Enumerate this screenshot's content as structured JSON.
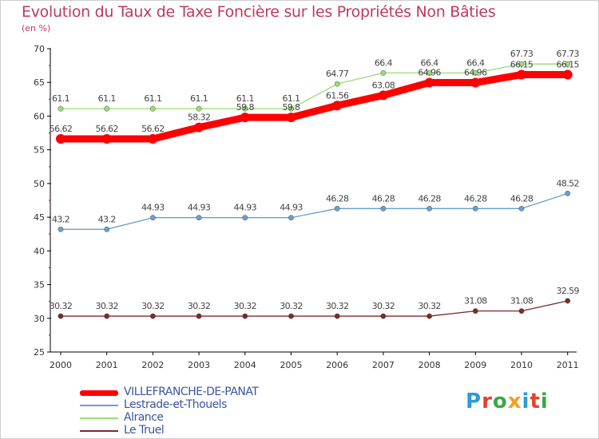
{
  "chart_data": {
    "type": "line",
    "title": "Evolution du Taux de Taxe Foncière sur les Propriétés Non Bâties",
    "ylabel": "(en %)",
    "xlabel": "",
    "x": [
      "2000",
      "2001",
      "2002",
      "2003",
      "2004",
      "2005",
      "2006",
      "2007",
      "2008",
      "2009",
      "2010",
      "2011"
    ],
    "ylim": [
      25,
      70
    ],
    "yticks": [
      25,
      30,
      35,
      40,
      45,
      50,
      55,
      60,
      65,
      70
    ],
    "grid": false,
    "series": [
      {
        "name": "VILLEFRANCHE-DE-PANAT",
        "color": "#ff0000",
        "values": [
          56.62,
          56.62,
          56.62,
          58.32,
          59.8,
          59.8,
          61.56,
          63.08,
          64.96,
          64.96,
          66.15,
          66.15
        ],
        "labels": [
          "56.62",
          "56.62",
          "56.62",
          "58.32",
          "59.8",
          "59.8",
          "61.56",
          "63.08",
          "64.96",
          "64.96",
          "66.15",
          "66.15"
        ]
      },
      {
        "name": "Lestrade-et-Thouels",
        "color": "#6a9fd0",
        "values": [
          43.2,
          43.2,
          44.93,
          44.93,
          44.93,
          44.93,
          46.28,
          46.28,
          46.28,
          46.28,
          46.28,
          48.52
        ],
        "labels": [
          "43.2",
          "43.2",
          "44.93",
          "44.93",
          "44.93",
          "44.93",
          "46.28",
          "46.28",
          "46.28",
          "46.28",
          "46.28",
          "48.52"
        ]
      },
      {
        "name": "Alrance",
        "color": "#99dd77",
        "values": [
          61.1,
          61.1,
          61.1,
          61.1,
          61.1,
          61.1,
          64.77,
          66.4,
          66.4,
          66.4,
          67.73,
          67.73
        ],
        "labels": [
          "61.1",
          "61.1",
          "61.1",
          "61.1",
          "61.1",
          "61.1",
          "64.77",
          "66.4",
          "66.4",
          "66.4",
          "67.73",
          "67.73"
        ]
      },
      {
        "name": "Le Truel",
        "color": "#7a2a2a",
        "values": [
          30.32,
          30.32,
          30.32,
          30.32,
          30.32,
          30.32,
          30.32,
          30.32,
          30.32,
          31.08,
          31.08,
          32.59
        ],
        "labels": [
          "30.32",
          "30.32",
          "30.32",
          "30.32",
          "30.32",
          "30.32",
          "30.32",
          "30.32",
          "30.32",
          "31.08",
          "31.08",
          "32.59"
        ]
      }
    ]
  },
  "brand": {
    "text": "Proxiti",
    "letter_colors": [
      "#2a9bd6",
      "#e8402a",
      "#3aa84a",
      "#f0a020",
      "#2a9bd6",
      "#e8402a",
      "#3aa84a"
    ]
  }
}
